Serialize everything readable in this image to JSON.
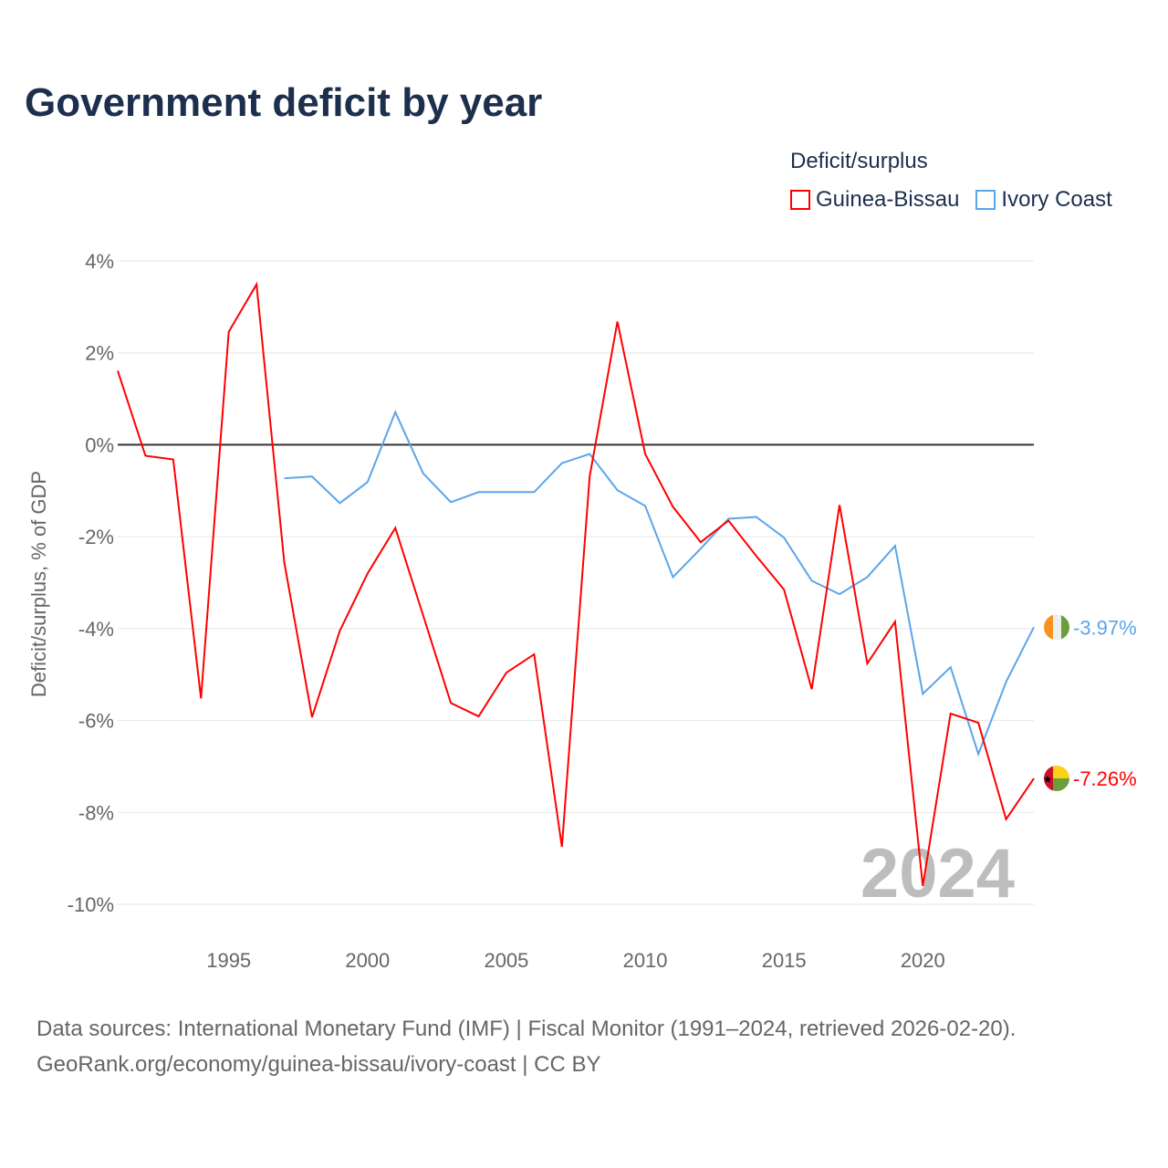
{
  "title": "Government deficit by year",
  "legend": {
    "title": "Deficit/surplus",
    "items": [
      {
        "label": "Guinea-Bissau",
        "color": "#ff0000"
      },
      {
        "label": "Ivory Coast",
        "color": "#5aa5ea"
      }
    ]
  },
  "footer": {
    "line1": "Data sources: International Monetary Fund (IMF) | Fiscal Monitor (1991–2024, retrieved 2026-02-20).",
    "line2": "GeoRank.org/economy/guinea-bissau/ivory-coast | CC BY"
  },
  "chart_data": {
    "type": "line",
    "title": "Government deficit by year",
    "ylabel": "Deficit/surplus, % of GDP",
    "xlabel": "",
    "ylim": [
      -10,
      4
    ],
    "xlim": [
      1991,
      2024
    ],
    "yticks": [
      4,
      2,
      0,
      -2,
      -4,
      -6,
      -8,
      -10
    ],
    "ytick_labels": [
      "4%",
      "2%",
      "0%",
      "-2%",
      "-4%",
      "-6%",
      "-8%",
      "-10%"
    ],
    "xticks": [
      1995,
      2000,
      2005,
      2010,
      2015,
      2020
    ],
    "xtick_labels": [
      "1995",
      "2000",
      "2005",
      "2010",
      "2015",
      "2020"
    ],
    "year_watermark": "2024",
    "grid": true,
    "legend_position": "top-right",
    "series": [
      {
        "name": "Guinea-Bissau",
        "color": "#ff0000",
        "end_label": "-7.26%",
        "x": [
          1991,
          1992,
          1993,
          1994,
          1995,
          1996,
          1997,
          1998,
          1999,
          2000,
          2001,
          2002,
          2003,
          2004,
          2005,
          2006,
          2007,
          2008,
          2009,
          2010,
          2011,
          2012,
          2013,
          2014,
          2015,
          2016,
          2017,
          2018,
          2019,
          2020,
          2021,
          2022,
          2023,
          2024
        ],
        "values": [
          1.61,
          -0.24,
          -0.32,
          -5.52,
          2.46,
          3.49,
          -2.56,
          -5.93,
          -4.05,
          -2.8,
          -1.81,
          -3.71,
          -5.62,
          -5.91,
          -4.96,
          -4.56,
          -8.75,
          -0.69,
          2.68,
          -0.2,
          -1.35,
          -2.12,
          -1.65,
          -2.42,
          -3.15,
          -5.32,
          -1.31,
          -4.76,
          -3.85,
          -9.6,
          -5.85,
          -6.05,
          -8.15,
          -7.26
        ]
      },
      {
        "name": "Ivory Coast",
        "color": "#5aa5ea",
        "end_label": "-3.97%",
        "x": [
          1997,
          1998,
          1999,
          2000,
          2001,
          2002,
          2003,
          2004,
          2005,
          2006,
          2007,
          2008,
          2009,
          2010,
          2011,
          2012,
          2013,
          2014,
          2015,
          2016,
          2017,
          2018,
          2019,
          2020,
          2021,
          2022,
          2023,
          2024
        ],
        "values": [
          -0.73,
          -0.69,
          -1.27,
          -0.81,
          0.71,
          -0.62,
          -1.25,
          -1.03,
          -1.03,
          -1.03,
          -0.4,
          -0.2,
          -0.99,
          -1.33,
          -2.88,
          -2.26,
          -1.61,
          -1.57,
          -2.02,
          -2.96,
          -3.25,
          -2.88,
          -2.2,
          -5.42,
          -4.84,
          -6.73,
          -5.16,
          -3.97
        ]
      }
    ]
  }
}
